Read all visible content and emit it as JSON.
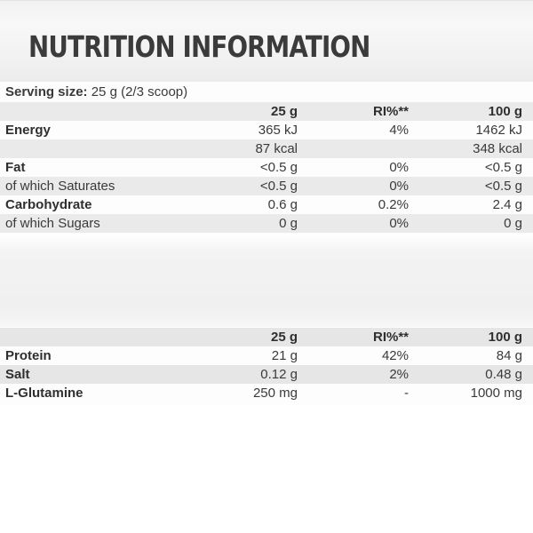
{
  "title": "NUTRITION INFORMATION",
  "serving": {
    "label": "Serving size:",
    "value": "25 g (2/3 scoop)"
  },
  "table1": {
    "headers": [
      "25 g",
      "RI%**",
      "100 g"
    ],
    "rows": [
      {
        "label": "Energy",
        "v1": "365 kJ",
        "v2": "4%",
        "v3": "1462 kJ"
      },
      {
        "label": "",
        "v1": "87 kcal",
        "v2": "",
        "v3": "348 kcal"
      },
      {
        "label": "Fat",
        "v1": "<0.5 g",
        "v2": "0%",
        "v3": "<0.5 g"
      },
      {
        "label": "of which Saturates",
        "v1": "<0.5 g",
        "v2": "0%",
        "v3": "<0.5 g"
      },
      {
        "label": "Carbohydrate",
        "v1": "0.6 g",
        "v2": "0.2%",
        "v3": "2.4 g"
      },
      {
        "label": "of which Sugars",
        "v1": "0 g",
        "v2": "0%",
        "v3": "0 g"
      }
    ]
  },
  "table2": {
    "headers": [
      "25 g",
      "RI%**",
      "100 g"
    ],
    "rows": [
      {
        "label": "Protein",
        "v1": "21 g",
        "v2": "42%",
        "v3": "84 g"
      },
      {
        "label": "Salt",
        "v1": "0.12 g",
        "v2": "2%",
        "v3": "0.48 g"
      },
      {
        "label": "L-Glutamine",
        "v1": "250 mg",
        "v2": "-",
        "v3": "1000 mg"
      }
    ]
  }
}
